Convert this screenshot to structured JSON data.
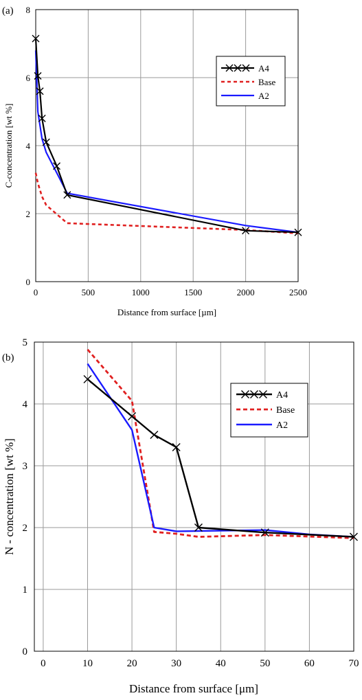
{
  "chart_data": [
    {
      "type": "line",
      "panel_label": "(a)",
      "xlabel": "Distance from surface [µm]",
      "ylabel": "C-concentration [wt %]",
      "xlim": [
        0,
        2500
      ],
      "ylim": [
        0,
        8
      ],
      "x_ticks": [
        "0",
        "500",
        "1000",
        "1500",
        "2000",
        "2500"
      ],
      "y_ticks": [
        "0",
        "2",
        "4",
        "6",
        "8"
      ],
      "grid": true,
      "legend_position": "top-right",
      "series": [
        {
          "name": "A4",
          "color": "#000000",
          "style": "solid-x-markers",
          "x": [
            0,
            20,
            40,
            60,
            100,
            200,
            300,
            2000,
            2500
          ],
          "y": [
            7.15,
            6.05,
            5.6,
            4.8,
            4.1,
            3.4,
            2.55,
            1.5,
            1.45
          ]
        },
        {
          "name": "Base",
          "color": "#e02020",
          "style": "dashed",
          "x": [
            0,
            20,
            60,
            100,
            300,
            2000,
            2500
          ],
          "y": [
            3.2,
            2.9,
            2.5,
            2.25,
            1.72,
            1.52,
            1.42
          ]
        },
        {
          "name": "A2",
          "color": "#1a1aff",
          "style": "solid",
          "x": [
            0,
            20,
            60,
            100,
            200,
            300,
            2000,
            2500
          ],
          "y": [
            6.8,
            5.0,
            4.2,
            3.8,
            3.2,
            2.6,
            1.65,
            1.45
          ]
        }
      ]
    },
    {
      "type": "line",
      "panel_label": "(b)",
      "xlabel": "Distance from surface [μm]",
      "ylabel": "N - concentration [wt %]",
      "xlim": [
        -2,
        70
      ],
      "ylim": [
        0,
        5
      ],
      "x_ticks": [
        "0",
        "10",
        "20",
        "30",
        "40",
        "50",
        "60",
        "70"
      ],
      "y_ticks": [
        "0",
        "1",
        "2",
        "3",
        "4",
        "5"
      ],
      "grid": true,
      "legend_position": "top-right",
      "series": [
        {
          "name": "A4",
          "color": "#000000",
          "style": "solid-x-markers",
          "x": [
            10,
            20,
            25,
            30,
            35,
            50,
            70
          ],
          "y": [
            4.4,
            3.8,
            3.5,
            3.3,
            2.0,
            1.92,
            1.85
          ]
        },
        {
          "name": "Base",
          "color": "#e02020",
          "style": "dashed",
          "x": [
            10,
            20,
            25,
            30,
            35,
            50,
            70
          ],
          "y": [
            4.88,
            4.05,
            1.93,
            1.9,
            1.85,
            1.88,
            1.83
          ]
        },
        {
          "name": "A2",
          "color": "#1a1aff",
          "style": "solid",
          "x": [
            10,
            20,
            25,
            30,
            50,
            60,
            70
          ],
          "y": [
            4.65,
            3.58,
            2.0,
            1.94,
            1.96,
            1.89,
            1.85
          ]
        }
      ]
    }
  ]
}
